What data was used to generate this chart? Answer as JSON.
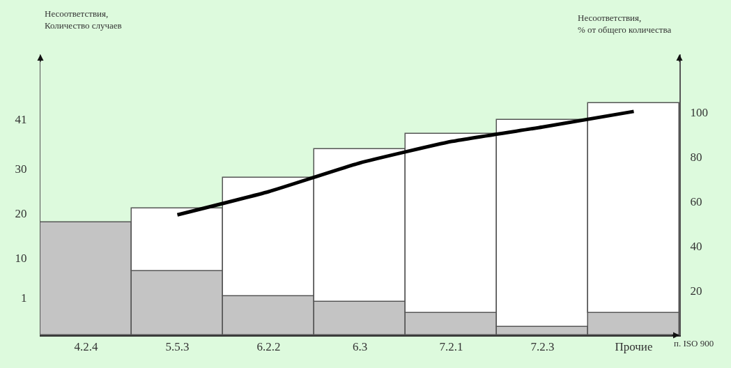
{
  "chart_data": {
    "type": "bar",
    "stacked": true,
    "xlabel": "п. ISO 900",
    "ylabel": "Несоответствия,\nКоличество случаев",
    "y2label": "Несоответствия,\n% от общего количества",
    "categories": [
      "4.2.4",
      "5.5.3",
      "6.2.2",
      "6.3",
      "7.2.1",
      "7.2.3",
      "Прочие"
    ],
    "series": [
      {
        "color": "#c4c4c4",
        "values": [
          50.6,
          28.7,
          17.5,
          14.9,
          10.0,
          3.8,
          10.0
        ],
        "axis": "y2"
      },
      {
        "color": "#ffffff",
        "values": [
          null,
          28.3,
          53.1,
          68.6,
          80.4,
          92.7,
          94.0
        ],
        "axis": "y2"
      },
      {
        "type": "line",
        "color": "#000000",
        "values": [
          null,
          54.0,
          64.4,
          77.3,
          86.9,
          93.4,
          100.4
        ],
        "axis": "y2"
      }
    ],
    "ylim": [
      -7.4,
      55.6
    ],
    "yticks": [
      1,
      10,
      20,
      30,
      41
    ],
    "y2lim": [
      0,
      126
    ],
    "y2ticks": [
      20,
      40,
      60,
      80,
      100
    ],
    "grid": false,
    "marker": "none",
    "line_style": "solid"
  }
}
